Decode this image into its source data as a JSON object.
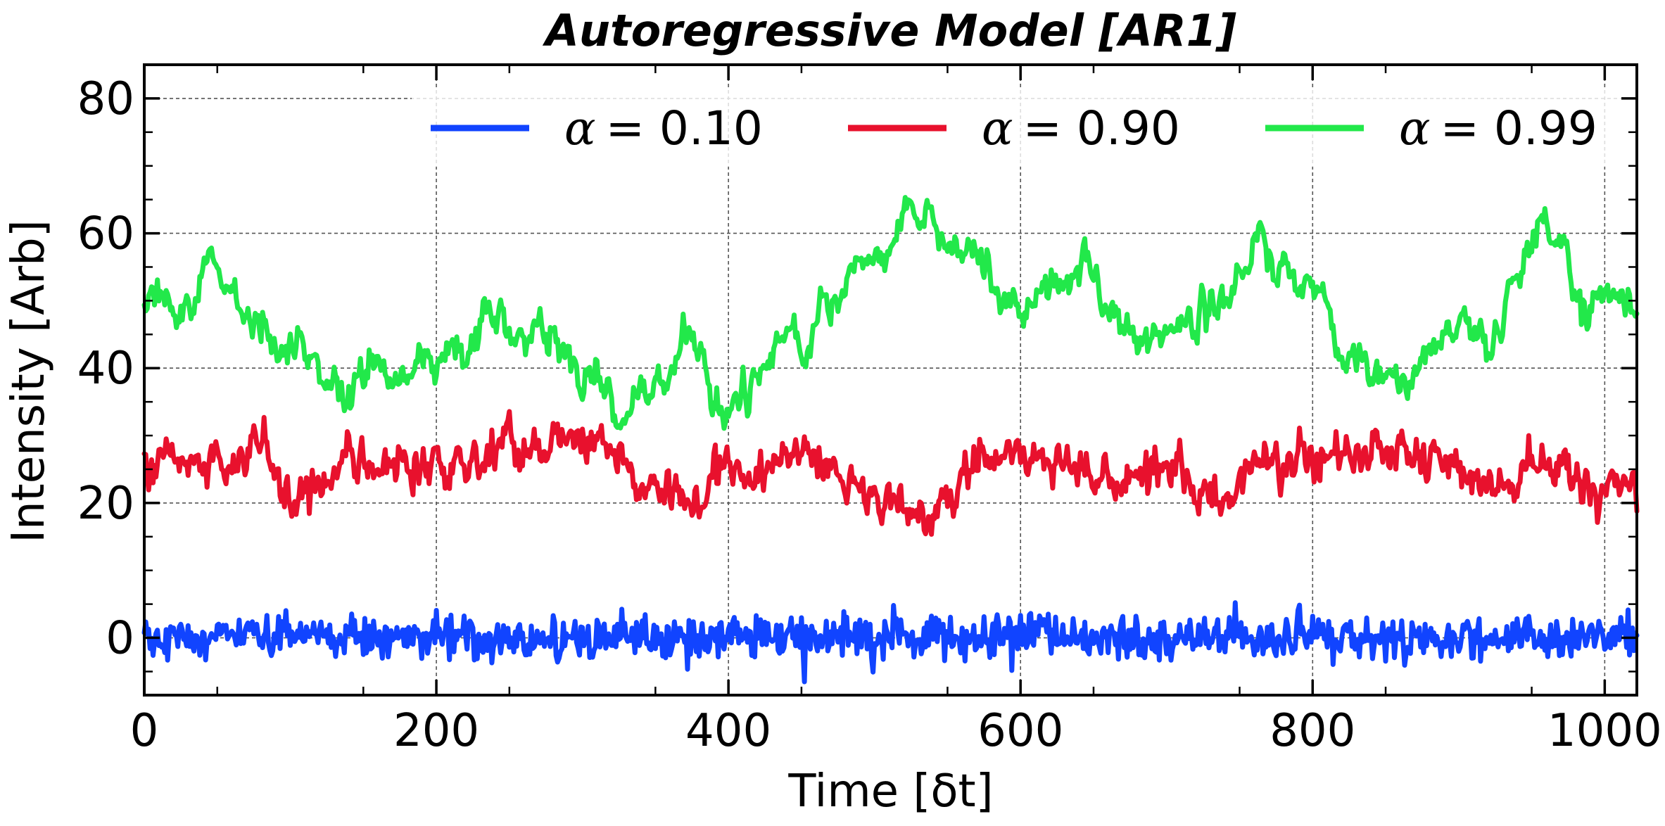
{
  "chart_data": {
    "type": "line",
    "title": "Autoregressive Model [AR1]",
    "xlabel": "Time [δt]",
    "ylabel": "Intensity [Arb]",
    "xlim": [
      0,
      1022
    ],
    "ylim": [
      -8.5,
      85
    ],
    "xticks": [
      0,
      200,
      400,
      600,
      800,
      1000
    ],
    "yticks": [
      0,
      20,
      40,
      60,
      80
    ],
    "grid": true,
    "legend": {
      "placement": "top-right",
      "columns": 3
    },
    "series": [
      {
        "name": "α = 0.10",
        "legend_symbol": "α",
        "legend_value": "= 0.10",
        "color": "#1144ff",
        "anchors": {
          "x": [
            0,
            100,
            200,
            300,
            400,
            500,
            600,
            700,
            800,
            900,
            1022
          ],
          "y": [
            0,
            0,
            0,
            0,
            0,
            0,
            0,
            0,
            0,
            0,
            0
          ]
        },
        "noise_amplitude": 1.6,
        "noise_smoothing": 0.1
      },
      {
        "name": "α = 0.90",
        "legend_symbol": "α",
        "legend_value": "= 0.90",
        "color": "#e8112d",
        "anchors": {
          "x": [
            0,
            60,
            80,
            100,
            140,
            200,
            240,
            300,
            340,
            360,
            400,
            450,
            500,
            530,
            580,
            620,
            660,
            700,
            730,
            790,
            850,
            900,
            930,
            950,
            1000,
            1022
          ],
          "y": [
            26,
            25,
            29,
            21,
            26,
            25,
            28,
            29,
            23,
            21,
            23,
            28,
            22,
            18,
            27,
            26,
            22,
            25,
            21,
            27,
            28,
            25,
            22,
            26,
            23,
            22
          ]
        },
        "noise_amplitude": 1.8,
        "noise_smoothing": 0.55
      },
      {
        "name": "α = 0.99",
        "legend_symbol": "α",
        "legend_value": "= 0.99",
        "color": "#22e84a",
        "anchors": {
          "x": [
            0,
            20,
            55,
            80,
            100,
            135,
            160,
            200,
            240,
            260,
            300,
            330,
            370,
            400,
            450,
            470,
            500,
            535,
            560,
            600,
            640,
            680,
            730,
            760,
            800,
            830,
            855,
            900,
            920,
            955,
            1000,
            1022
          ],
          "y": [
            50,
            48,
            55,
            48,
            43,
            37,
            45,
            39,
            45,
            47,
            40,
            33,
            42,
            35,
            45,
            52,
            57,
            63,
            56,
            48,
            55,
            44,
            49,
            53,
            50,
            39,
            37,
            47,
            43,
            61,
            49,
            50
          ]
        },
        "noise_amplitude": 2.2,
        "noise_smoothing": 0.8
      }
    ]
  }
}
